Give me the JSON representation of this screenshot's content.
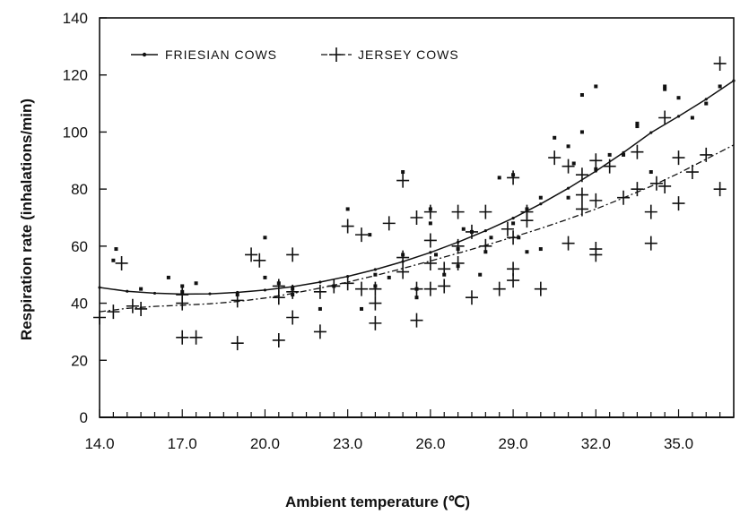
{
  "chart_data": {
    "type": "scatter",
    "xlabel": "Ambient temperature (℃)",
    "ylabel": "Respiration rate (inhalations/min)",
    "xlim": [
      14,
      37
    ],
    "ylim": [
      0,
      140
    ],
    "x_ticks": [
      "14.0",
      "17.0",
      "20.0",
      "23.0",
      "26.0",
      "29.0",
      "32.0",
      "35.0"
    ],
    "y_ticks": [
      "0",
      "20",
      "40",
      "60",
      "80",
      "100",
      "120",
      "140"
    ],
    "grid": false,
    "legend_position": "top-left",
    "series": [
      {
        "name": "FRIESIAN COWS",
        "marker": "dot",
        "line_style": "solid",
        "color": "#111111",
        "fit_x": [
          14,
          15,
          16,
          17,
          18,
          19,
          20,
          21,
          22,
          23,
          24,
          25,
          26,
          27,
          28,
          29,
          30,
          31,
          32,
          33,
          34,
          35,
          36,
          37
        ],
        "fit_y": [
          45.5,
          44.2,
          43.5,
          43.2,
          43.3,
          43.8,
          44.6,
          45.8,
          47.4,
          49.4,
          51.8,
          54.6,
          57.8,
          61.4,
          65.4,
          69.8,
          74.8,
          80.3,
          86.3,
          92.8,
          99.8,
          105.5,
          111.5,
          118
        ],
        "points": [
          [
            14.6,
            59
          ],
          [
            14.5,
            55
          ],
          [
            15.5,
            45
          ],
          [
            16.5,
            49
          ],
          [
            17.0,
            46
          ],
          [
            17.0,
            44
          ],
          [
            17.5,
            47
          ],
          [
            19.0,
            43
          ],
          [
            20.0,
            63
          ],
          [
            20.0,
            49
          ],
          [
            20.5,
            47
          ],
          [
            21.0,
            45
          ],
          [
            21.0,
            43
          ],
          [
            22.0,
            38
          ],
          [
            22.5,
            46
          ],
          [
            23.0,
            73
          ],
          [
            23.5,
            38
          ],
          [
            23.8,
            64
          ],
          [
            24.0,
            50
          ],
          [
            24.0,
            46
          ],
          [
            24.5,
            49
          ],
          [
            25.0,
            86
          ],
          [
            25.0,
            57
          ],
          [
            25.5,
            45
          ],
          [
            25.5,
            42
          ],
          [
            26.0,
            73
          ],
          [
            26.0,
            68
          ],
          [
            26.2,
            57
          ],
          [
            26.5,
            50
          ],
          [
            27.0,
            59
          ],
          [
            27.0,
            53
          ],
          [
            27.2,
            66
          ],
          [
            27.5,
            65
          ],
          [
            27.8,
            50
          ],
          [
            28.0,
            58
          ],
          [
            28.2,
            63
          ],
          [
            28.5,
            84
          ],
          [
            29.0,
            85
          ],
          [
            29.0,
            68
          ],
          [
            29.2,
            63
          ],
          [
            29.5,
            73
          ],
          [
            29.5,
            58
          ],
          [
            30.0,
            77
          ],
          [
            30.0,
            59
          ],
          [
            30.5,
            98
          ],
          [
            31.0,
            95
          ],
          [
            31.0,
            77
          ],
          [
            31.2,
            89
          ],
          [
            31.5,
            113
          ],
          [
            31.5,
            100
          ],
          [
            32.0,
            116
          ],
          [
            32.0,
            87
          ],
          [
            32.5,
            92
          ],
          [
            33.0,
            92
          ],
          [
            33.5,
            103
          ],
          [
            33.5,
            102
          ],
          [
            34.0,
            86
          ],
          [
            34.5,
            116
          ],
          [
            34.5,
            115
          ],
          [
            35.0,
            112
          ],
          [
            35.5,
            105
          ],
          [
            36.0,
            110
          ],
          [
            36.5,
            116
          ]
        ]
      },
      {
        "name": "JERSEY COWS",
        "marker": "plus",
        "line_style": "dash-dot",
        "color": "#111111",
        "fit_x": [
          14,
          15,
          16,
          17,
          18,
          19,
          20,
          21,
          22,
          23,
          24,
          25,
          26,
          27,
          28,
          29,
          30,
          31,
          32,
          33,
          34,
          35,
          36,
          37
        ],
        "fit_y": [
          37,
          38.2,
          38.9,
          39.3,
          39.8,
          40.6,
          41.8,
          43.4,
          45.3,
          47.4,
          49.7,
          52.2,
          54.8,
          57.5,
          60.3,
          63.2,
          66.2,
          69.5,
          73,
          76.9,
          81,
          85.5,
          90.5,
          95.5
        ],
        "points": [
          [
            14.0,
            35
          ],
          [
            14.5,
            37
          ],
          [
            14.8,
            54
          ],
          [
            15.2,
            39
          ],
          [
            15.5,
            38
          ],
          [
            17.0,
            43
          ],
          [
            17.0,
            40
          ],
          [
            17.0,
            28
          ],
          [
            17.5,
            28
          ],
          [
            19.0,
            26
          ],
          [
            19.0,
            41
          ],
          [
            19.5,
            57
          ],
          [
            19.8,
            55
          ],
          [
            20.5,
            46
          ],
          [
            20.5,
            42
          ],
          [
            20.5,
            27
          ],
          [
            21.0,
            57
          ],
          [
            21.0,
            44
          ],
          [
            21.0,
            35
          ],
          [
            22.0,
            30
          ],
          [
            22.0,
            44
          ],
          [
            22.5,
            46
          ],
          [
            23.0,
            67
          ],
          [
            23.0,
            47
          ],
          [
            23.5,
            64
          ],
          [
            23.5,
            45
          ],
          [
            24.0,
            45
          ],
          [
            24.0,
            40
          ],
          [
            24.0,
            33
          ],
          [
            24.5,
            68
          ],
          [
            25.0,
            83
          ],
          [
            25.0,
            56
          ],
          [
            25.0,
            51
          ],
          [
            25.5,
            70
          ],
          [
            25.5,
            45
          ],
          [
            25.5,
            34
          ],
          [
            26.0,
            72
          ],
          [
            26.0,
            62
          ],
          [
            26.0,
            54
          ],
          [
            26.0,
            45
          ],
          [
            26.5,
            52
          ],
          [
            26.5,
            46
          ],
          [
            27.0,
            72
          ],
          [
            27.0,
            60
          ],
          [
            27.0,
            54
          ],
          [
            27.5,
            65
          ],
          [
            27.5,
            42
          ],
          [
            28.0,
            72
          ],
          [
            28.0,
            60
          ],
          [
            28.5,
            45
          ],
          [
            28.8,
            66
          ],
          [
            29.0,
            84
          ],
          [
            29.0,
            63
          ],
          [
            29.0,
            52
          ],
          [
            29.0,
            48
          ],
          [
            29.5,
            72
          ],
          [
            29.5,
            69
          ],
          [
            30.0,
            45
          ],
          [
            30.5,
            91
          ],
          [
            31.0,
            88
          ],
          [
            31.0,
            61
          ],
          [
            31.5,
            85
          ],
          [
            31.5,
            78
          ],
          [
            31.5,
            73
          ],
          [
            32.0,
            90
          ],
          [
            32.0,
            76
          ],
          [
            32.0,
            59
          ],
          [
            32.0,
            57
          ],
          [
            32.5,
            88
          ],
          [
            33.0,
            77
          ],
          [
            33.5,
            93
          ],
          [
            33.5,
            80
          ],
          [
            34.0,
            72
          ],
          [
            34.0,
            61
          ],
          [
            34.2,
            82
          ],
          [
            34.5,
            81
          ],
          [
            34.5,
            105
          ],
          [
            35.0,
            91
          ],
          [
            35.0,
            75
          ],
          [
            35.5,
            86
          ],
          [
            36.0,
            92
          ],
          [
            36.5,
            124
          ],
          [
            36.5,
            80
          ]
        ]
      }
    ]
  }
}
